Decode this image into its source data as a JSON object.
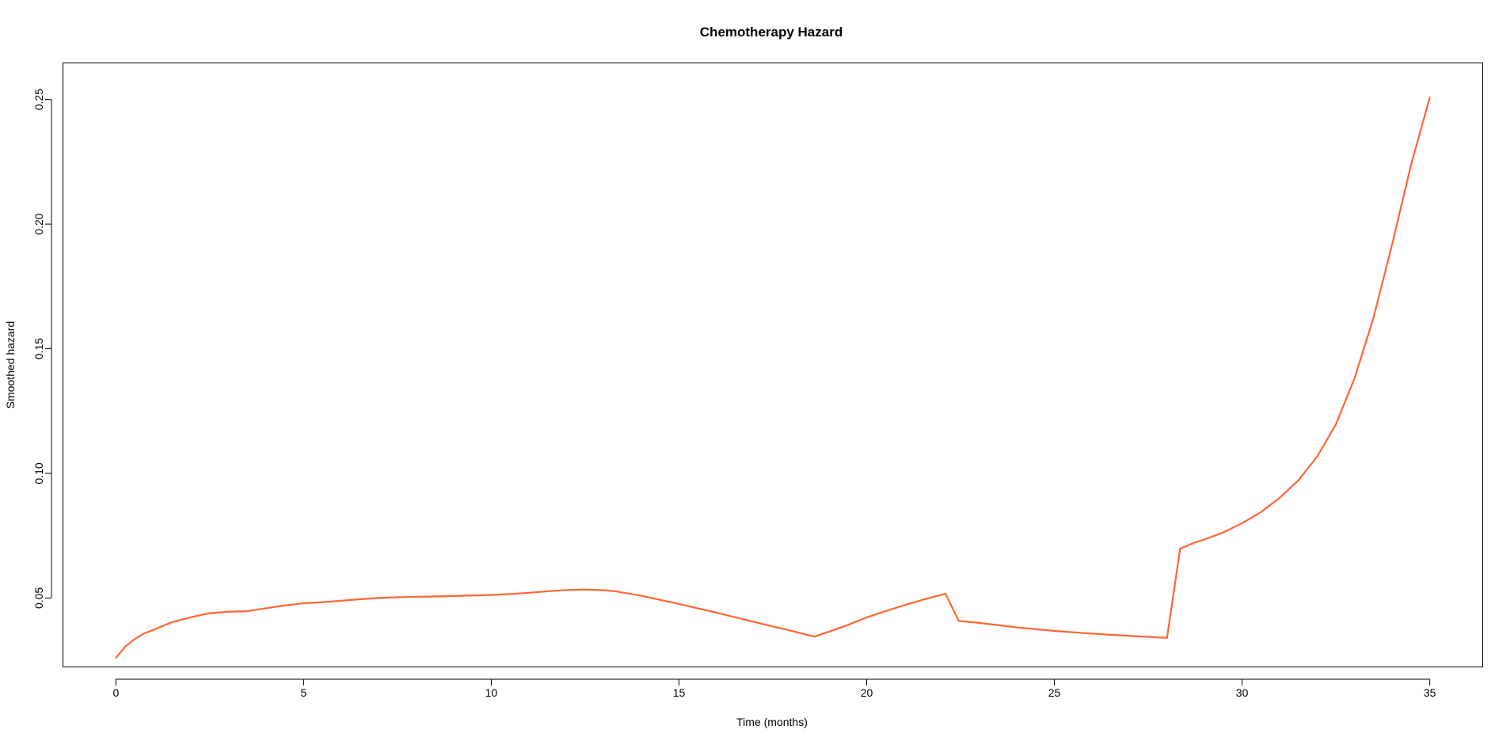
{
  "chart_data": {
    "type": "line",
    "title": "Chemotherapy Hazard",
    "xlabel": "Time (months)",
    "ylabel": "Smoothed hazard",
    "xlim": [
      -1.4,
      36.4
    ],
    "ylim": [
      0.0225,
      0.2645
    ],
    "xticks": [
      0,
      5,
      10,
      15,
      20,
      25,
      30,
      35
    ],
    "xtick_labels": [
      "0",
      "5",
      "10",
      "15",
      "20",
      "25",
      "30",
      "35"
    ],
    "yticks": [
      0.05,
      0.1,
      0.15,
      0.2,
      0.25
    ],
    "ytick_labels": [
      "0.05",
      "0.10",
      "0.15",
      "0.20",
      "0.25"
    ],
    "grid": false,
    "line_color": "#FF6633",
    "series": [
      {
        "name": "Smoothed hazard",
        "x": [
          0,
          0.25,
          0.5,
          0.75,
          1.0,
          1.25,
          1.5,
          2.0,
          2.5,
          3.0,
          3.5,
          4.0,
          4.5,
          5.0,
          5.5,
          6.0,
          6.5,
          7.0,
          7.5,
          8.0,
          8.5,
          9.0,
          9.5,
          10.0,
          10.5,
          11.0,
          11.5,
          12.0,
          12.5,
          13.0,
          13.3,
          14.0,
          15.0,
          16.0,
          17.0,
          18.0,
          18.6,
          19.0,
          19.5,
          20.0,
          20.5,
          21.0,
          21.5,
          22.1,
          22.45,
          23.0,
          24.0,
          25.0,
          26.0,
          27.0,
          28.0,
          28.35,
          28.7,
          29.0,
          29.5,
          30.0,
          30.5,
          31.0,
          31.5,
          32.0,
          32.5,
          33.0,
          33.5,
          34.0,
          34.5,
          35.0
        ],
        "values": [
          0.026,
          0.0305,
          0.0335,
          0.0358,
          0.0372,
          0.0388,
          0.0403,
          0.0423,
          0.0439,
          0.0445,
          0.0447,
          0.0459,
          0.047,
          0.0479,
          0.0483,
          0.0489,
          0.0495,
          0.05,
          0.0503,
          0.0505,
          0.0506,
          0.0508,
          0.051,
          0.0512,
          0.0516,
          0.0521,
          0.0527,
          0.0532,
          0.0534,
          0.0531,
          0.0527,
          0.0509,
          0.0476,
          0.0441,
          0.0404,
          0.0368,
          0.0345,
          0.0365,
          0.0392,
          0.0422,
          0.0447,
          0.0471,
          0.0493,
          0.0517,
          0.0408,
          0.04,
          0.0382,
          0.0368,
          0.0357,
          0.0348,
          0.034,
          0.0698,
          0.072,
          0.0735,
          0.0763,
          0.08,
          0.0844,
          0.0902,
          0.0972,
          0.1067,
          0.1197,
          0.1383,
          0.1624,
          0.192,
          0.2237,
          0.2508
        ]
      }
    ]
  }
}
